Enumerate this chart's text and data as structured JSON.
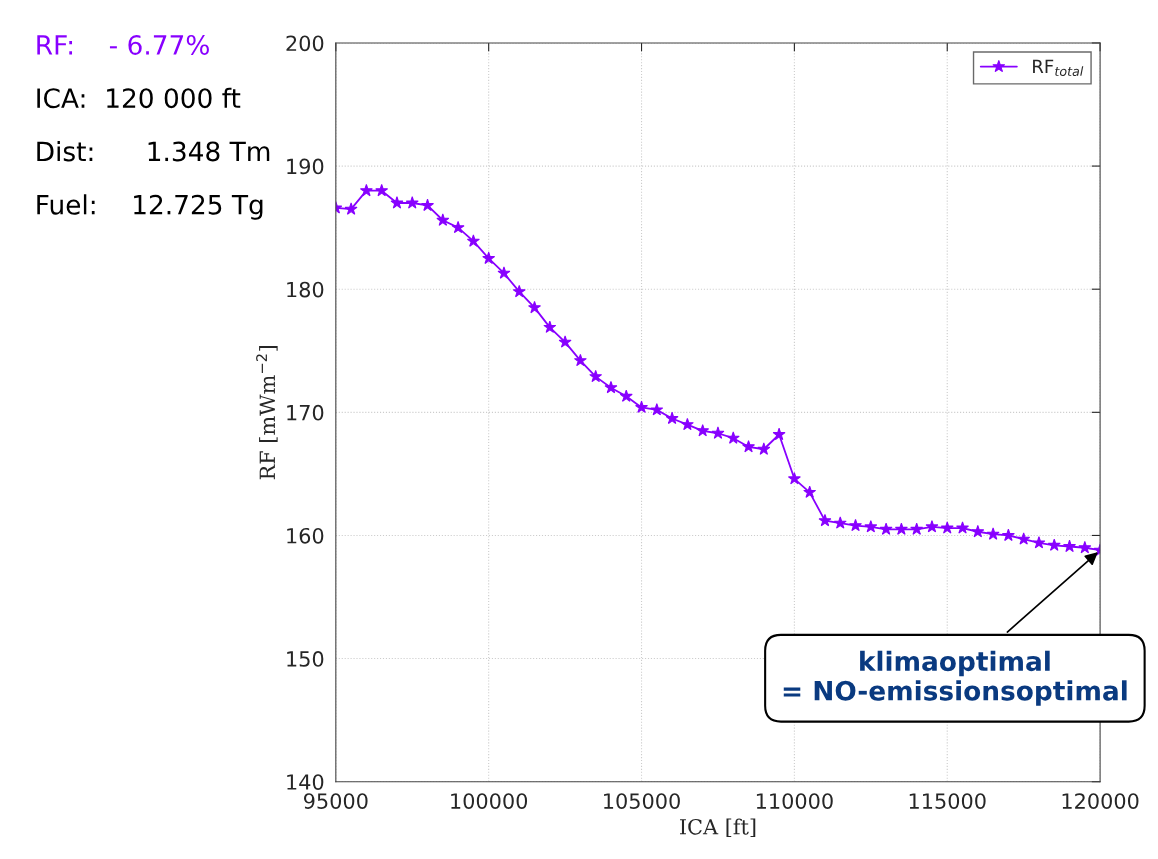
{
  "chart_data": {
    "type": "line",
    "xlabel": "ICA [ft]",
    "ylabel": "RF [mWm$^{−2}$]",
    "x": [
      95000,
      95500,
      96000,
      96500,
      97000,
      97500,
      98000,
      98500,
      99000,
      99500,
      100000,
      100500,
      101000,
      101500,
      102000,
      102500,
      103000,
      103500,
      104000,
      104500,
      105000,
      105500,
      106000,
      106500,
      107000,
      107500,
      108000,
      108500,
      109000,
      109500,
      110000,
      110500,
      111000,
      111500,
      112000,
      112500,
      113000,
      113500,
      114000,
      114500,
      115000,
      115500,
      116000,
      116500,
      117000,
      117500,
      118000,
      118500,
      119000,
      119500,
      120000
    ],
    "series": [
      {
        "name": "RF$_{total}$",
        "color": "#8800ff",
        "values": [
          186.6,
          186.5,
          188.0,
          188.0,
          187.0,
          187.0,
          186.8,
          185.6,
          185.0,
          183.9,
          182.5,
          181.3,
          179.8,
          178.5,
          176.9,
          175.7,
          174.2,
          172.9,
          172.0,
          171.3,
          170.4,
          170.2,
          169.5,
          169.0,
          168.5,
          168.3,
          167.9,
          167.2,
          167.0,
          168.2,
          164.6,
          163.5,
          161.2,
          161.0,
          160.8,
          160.7,
          160.5,
          160.5,
          160.5,
          160.7,
          160.6,
          160.6,
          160.3,
          160.1,
          160.0,
          159.7,
          159.4,
          159.2,
          159.1,
          159.0,
          158.8
        ]
      }
    ],
    "xlim": [
      95000,
      120000
    ],
    "xticks": [
      95000,
      100000,
      105000,
      110000,
      115000,
      120000
    ],
    "ylim": [
      140,
      200
    ],
    "yticks": [
      140,
      150,
      160,
      170,
      180,
      190,
      200
    ],
    "grid": true,
    "legend": "top right",
    "marker": "star",
    "line_style": "solid",
    "annotations": [
      "RF:    - 6.77%",
      "ICA:  120 000 ft",
      "Dist:      1.348 Tm",
      "Fuel:    12.725 Tg",
      {
        "text": "klimaoptimal\n= NO-emissionsoptimal",
        "x": 120000,
        "y": 158.8
      }
    ]
  }
}
